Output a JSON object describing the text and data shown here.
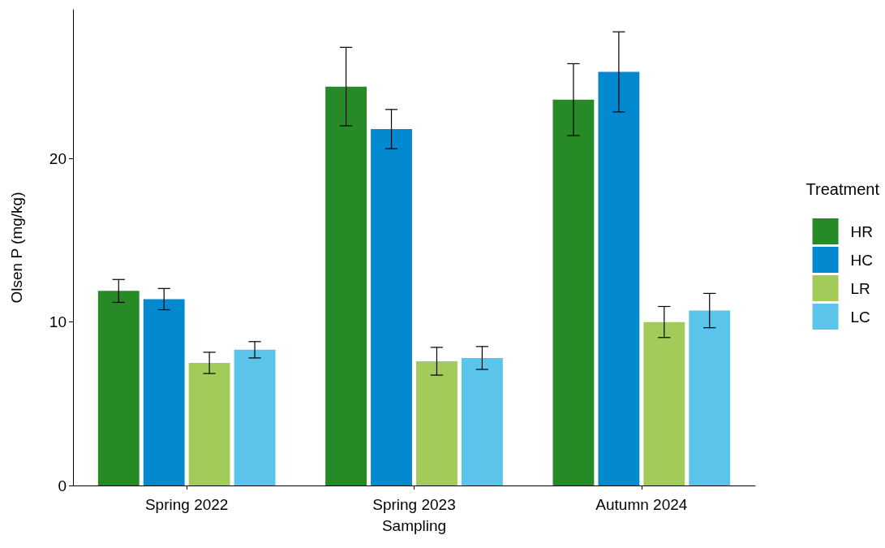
{
  "chart_data": {
    "type": "bar",
    "xlabel": "Sampling",
    "ylabel": "Olsen P (mg/kg)",
    "legend_title": "Treatment",
    "categories": [
      "Spring 2022",
      "Spring 2023",
      "Autumn 2024"
    ],
    "series": [
      {
        "name": "HR",
        "color": "#268b26",
        "values": [
          11.9,
          24.4,
          23.6
        ],
        "errors": [
          0.7,
          2.4,
          2.2
        ]
      },
      {
        "name": "HC",
        "color": "#0389cf",
        "values": [
          11.4,
          21.8,
          25.3
        ],
        "errors": [
          0.65,
          1.2,
          2.45
        ]
      },
      {
        "name": "LR",
        "color": "#a3cb5a",
        "values": [
          7.5,
          7.6,
          10.0
        ],
        "errors": [
          0.65,
          0.85,
          0.95
        ]
      },
      {
        "name": "LC",
        "color": "#5ac4ea",
        "values": [
          8.3,
          7.8,
          10.7
        ],
        "errors": [
          0.5,
          0.7,
          1.05
        ]
      }
    ],
    "ylim": [
      0,
      29.1
    ],
    "yticks": [
      0,
      10,
      20
    ],
    "grid": false,
    "legend": "right"
  }
}
